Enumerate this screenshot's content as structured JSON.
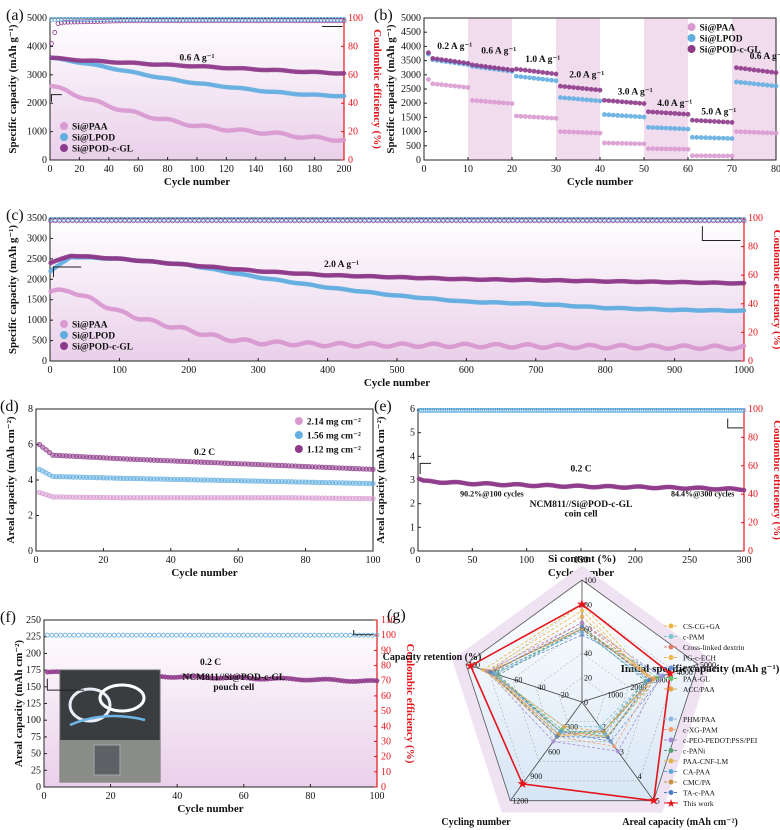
{
  "colors": {
    "paa": "#d99ad1",
    "lpod": "#63aee0",
    "pod": "#8e3a8a",
    "ce": "#e4141b",
    "shade": "#f1dcee",
    "radar_outer": "#efe3f3",
    "radar_inner": "#c4def0"
  },
  "chart_data": [
    {
      "id": "a",
      "panel_label": "(a)",
      "type": "scatter",
      "xlabel": "Cycle number",
      "ylabel": "Specific capacity (mAh g⁻¹)",
      "y2label": "Coulombic efficiency (%)",
      "xlim": [
        0,
        200
      ],
      "ylim": [
        0,
        5000
      ],
      "y2lim": [
        0,
        100
      ],
      "xticks": [
        "0",
        "20",
        "40",
        "60",
        "80",
        "100",
        "120",
        "140",
        "160",
        "180",
        "200"
      ],
      "yticks": [
        "0",
        "1000",
        "2000",
        "3000",
        "4000",
        "5000"
      ],
      "y2ticks": [
        "0",
        "20",
        "40",
        "60",
        "80",
        "100"
      ],
      "annotation": "0.6 A g⁻¹",
      "series": [
        {
          "name": "Si@PAA",
          "color": "#d99ad1",
          "x": [
            1,
            10,
            25,
            50,
            75,
            100,
            125,
            150,
            175,
            200
          ],
          "y": [
            2600,
            2450,
            2150,
            1750,
            1450,
            1200,
            1050,
            950,
            800,
            700
          ]
        },
        {
          "name": "Si@LPOD",
          "color": "#63aee0",
          "x": [
            1,
            10,
            25,
            50,
            75,
            100,
            125,
            150,
            175,
            200
          ],
          "y": [
            3600,
            3520,
            3400,
            3150,
            2900,
            2700,
            2550,
            2400,
            2300,
            2250
          ]
        },
        {
          "name": "Si@POD-c-GL",
          "color": "#8e3a8a",
          "x": [
            1,
            10,
            25,
            50,
            75,
            100,
            125,
            150,
            175,
            200
          ],
          "y": [
            3600,
            3550,
            3500,
            3430,
            3360,
            3300,
            3230,
            3170,
            3100,
            3050
          ]
        }
      ],
      "ce_series": {
        "x": [
          1,
          5,
          10,
          50,
          100,
          150,
          200
        ],
        "y": [
          82,
          96,
          97,
          98,
          98,
          98,
          98
        ]
      }
    },
    {
      "id": "b",
      "panel_label": "(b)",
      "type": "scatter",
      "xlabel": "Cycle number",
      "ylabel": "Specific capacity (mAh g⁻¹)",
      "xlim": [
        0,
        80
      ],
      "ylim": [
        0,
        5000
      ],
      "xticks": [
        "0",
        "10",
        "20",
        "30",
        "40",
        "50",
        "60",
        "70",
        "80"
      ],
      "yticks": [
        "0",
        "500",
        "1000",
        "1500",
        "2000",
        "2500",
        "3000",
        "3500",
        "4000",
        "4500",
        "5000"
      ],
      "rate_labels": [
        "0.2 A g⁻¹",
        "0.6 A g⁻¹",
        "1.0 A g⁻¹",
        "2.0 A g⁻¹",
        "3.0 A g⁻¹",
        "4.0 A g⁻¹",
        "5.0 A g⁻¹",
        "0.6 A g⁻¹"
      ],
      "series": [
        {
          "name": "Si@PAA",
          "color": "#d99ad1",
          "steps": [
            2700,
            2100,
            1550,
            1000,
            600,
            400,
            150,
            1000
          ]
        },
        {
          "name": "Si@LPOD",
          "color": "#63aee0",
          "steps": [
            3550,
            3300,
            2950,
            2200,
            1600,
            1150,
            800,
            2750
          ]
        },
        {
          "name": "Si@POD-c-GL",
          "color": "#8e3a8a",
          "steps": [
            3600,
            3350,
            3200,
            2600,
            2100,
            1700,
            1400,
            3250
          ]
        }
      ]
    },
    {
      "id": "c",
      "panel_label": "(c)",
      "type": "scatter",
      "xlabel": "Cycle number",
      "ylabel": "Specific capacity (mAh g⁻¹)",
      "y2label": "Coulombic efficiency (%)",
      "xlim": [
        0,
        1000
      ],
      "ylim": [
        0,
        3500
      ],
      "y2lim": [
        0,
        100
      ],
      "xticks": [
        "0",
        "100",
        "200",
        "300",
        "400",
        "500",
        "600",
        "700",
        "800",
        "900",
        "1000"
      ],
      "yticks": [
        "0",
        "500",
        "1000",
        "1500",
        "2000",
        "2500",
        "3000",
        "3500"
      ],
      "y2ticks": [
        "0",
        "20",
        "40",
        "60",
        "80",
        "100"
      ],
      "annotation": "2.0 A g⁻¹",
      "series": [
        {
          "name": "Si@PAA",
          "color": "#d99ad1",
          "x": [
            1,
            30,
            60,
            100,
            150,
            200,
            250,
            300,
            400,
            600,
            800,
            1000
          ],
          "y": [
            1700,
            1720,
            1500,
            1200,
            950,
            750,
            550,
            450,
            400,
            380,
            350,
            330
          ]
        },
        {
          "name": "Si@LPOD",
          "color": "#63aee0",
          "x": [
            1,
            30,
            100,
            200,
            300,
            400,
            500,
            600,
            700,
            800,
            900,
            1000
          ],
          "y": [
            2200,
            2550,
            2500,
            2350,
            2050,
            1800,
            1600,
            1450,
            1400,
            1300,
            1250,
            1230
          ]
        },
        {
          "name": "Si@POD-c-GL",
          "color": "#8e3a8a",
          "x": [
            1,
            30,
            100,
            200,
            300,
            400,
            500,
            600,
            700,
            800,
            900,
            1000
          ],
          "y": [
            2400,
            2580,
            2500,
            2350,
            2200,
            2100,
            2050,
            2000,
            1980,
            1950,
            1930,
            1900
          ]
        }
      ],
      "ce_series": {
        "x": [
          1,
          100,
          500,
          1000
        ],
        "y": [
          96,
          98,
          98,
          98
        ]
      }
    },
    {
      "id": "d",
      "panel_label": "(d)",
      "type": "scatter",
      "xlabel": "Cycle number",
      "ylabel": "Areal capacity (mAh cm⁻²)",
      "xlim": [
        0,
        100
      ],
      "ylim": [
        0,
        8
      ],
      "xticks": [
        "0",
        "20",
        "40",
        "60",
        "80",
        "100"
      ],
      "yticks": [
        "0",
        "2",
        "4",
        "6",
        "8"
      ],
      "annotation": "0.2 C",
      "series": [
        {
          "name": "2.14 mg cm⁻²",
          "color": "#d99ad1",
          "x": [
            1,
            5,
            25,
            50,
            75,
            100
          ],
          "y": [
            3.3,
            3.05,
            3.0,
            3.0,
            3.0,
            2.95
          ]
        },
        {
          "name": "1.56 mg cm⁻²",
          "color": "#63aee0",
          "x": [
            1,
            5,
            25,
            50,
            75,
            100
          ],
          "y": [
            4.6,
            4.2,
            4.1,
            4.0,
            3.9,
            3.8
          ]
        },
        {
          "name": "1.12 mg cm⁻²",
          "color": "#8e3a8a",
          "x": [
            1,
            5,
            25,
            50,
            75,
            100
          ],
          "y": [
            6.0,
            5.4,
            5.2,
            5.0,
            4.8,
            4.6
          ]
        }
      ]
    },
    {
      "id": "e",
      "panel_label": "(e)",
      "type": "scatter",
      "xlabel": "Cycle number",
      "ylabel": "Areal capacity (mAh cm⁻²)",
      "y2label": "Coulombic efficiency (%)",
      "xlim": [
        0,
        300
      ],
      "ylim": [
        0,
        6
      ],
      "y2lim": [
        0,
        100
      ],
      "xticks": [
        "0",
        "50",
        "100",
        "150",
        "200",
        "250",
        "300"
      ],
      "yticks": [
        "0",
        "1",
        "2",
        "3",
        "4",
        "5",
        "6"
      ],
      "y2ticks": [
        "0",
        "20",
        "40",
        "60",
        "80",
        "100"
      ],
      "annotation": "0.2 C",
      "notes": [
        "90.2%@100 cycles",
        "84.4%@300 cycles"
      ],
      "cell": [
        "NCM811//Si@POD-c-GL",
        "coin cell"
      ],
      "series": [
        {
          "name": "NCM811//Si@POD-c-GL",
          "color": "#8e3a8a",
          "x": [
            1,
            5,
            50,
            100,
            150,
            200,
            250,
            300
          ],
          "y": [
            3.05,
            2.95,
            2.85,
            2.78,
            2.73,
            2.7,
            2.66,
            2.6
          ]
        }
      ],
      "ce_series": {
        "x": [
          1,
          300
        ],
        "y": [
          99,
          99
        ]
      }
    },
    {
      "id": "f",
      "panel_label": "(f)",
      "type": "scatter",
      "xlabel": "Cycle number",
      "ylabel": "Areal capacity (mAh cm⁻²)",
      "y2label": "Coulombic efficiency (%)",
      "xlim": [
        0,
        100
      ],
      "ylim": [
        0,
        250
      ],
      "y2lim": [
        0,
        110
      ],
      "xticks": [
        "0",
        "20",
        "40",
        "60",
        "80",
        "100"
      ],
      "yticks": [
        "0",
        "25",
        "50",
        "75",
        "100",
        "125",
        "150",
        "175",
        "200",
        "225",
        "250"
      ],
      "y2ticks": [
        "0",
        "10",
        "20",
        "30",
        "40",
        "50",
        "60",
        "70",
        "80",
        "90",
        "100",
        "110"
      ],
      "annotation": "0.2 C",
      "cell": [
        "NCM811//Si@POD-c-GL",
        "pouch cell"
      ],
      "series": [
        {
          "name": "NCM811//Si@POD-c-GL",
          "color": "#8e3a8a",
          "x": [
            1,
            20,
            40,
            60,
            80,
            100
          ],
          "y": [
            172,
            168,
            165,
            163,
            161,
            158
          ]
        }
      ],
      "ce_series": {
        "x": [
          1,
          100
        ],
        "y": [
          100,
          100
        ]
      }
    },
    {
      "id": "g",
      "panel_label": "(g)",
      "type": "radar",
      "axes": [
        {
          "name": "Si content (%)",
          "ticks": [
            "0",
            "20",
            "40",
            "60",
            "80",
            "100"
          ]
        },
        {
          "name": "Initial specific capacity (mAh g⁻¹)",
          "ticks": [
            "0",
            "1000",
            "2000",
            "3000",
            "4000",
            "5000"
          ]
        },
        {
          "name": "Areal capacity (mAh cm⁻²)",
          "ticks": [
            "1",
            "2",
            "3",
            "4",
            "5"
          ]
        },
        {
          "name": "Cycling number",
          "ticks": [
            "0",
            "300",
            "600",
            "900",
            "1200"
          ]
        },
        {
          "name": "Capacity retention (%)",
          "ticks": [
            "0",
            "20",
            "40",
            "60",
            "80",
            "100"
          ]
        }
      ],
      "series": [
        {
          "name": "CS-CG+GA",
          "color": "#e8b341",
          "values": [
            0.8,
            0.6,
            0.3,
            0.3,
            0.85
          ]
        },
        {
          "name": "c-PAM",
          "color": "#7dc4c9",
          "values": [
            0.6,
            0.55,
            0.25,
            0.25,
            0.8
          ]
        },
        {
          "name": "Cross-linked dextrin",
          "color": "#e07b6b",
          "values": [
            0.65,
            0.62,
            0.35,
            0.3,
            0.78
          ]
        },
        {
          "name": "PG-c-ECH",
          "color": "#f0b64c",
          "values": [
            0.75,
            0.58,
            0.3,
            0.35,
            0.82
          ]
        },
        {
          "name": "PAA-FREP",
          "color": "#6b8fd1",
          "values": [
            0.55,
            0.7,
            0.4,
            0.3,
            0.75
          ]
        },
        {
          "name": "PAA-GL",
          "color": "#6abf69",
          "values": [
            0.6,
            0.65,
            0.35,
            0.28,
            0.76
          ]
        },
        {
          "name": "ACC/PAA",
          "color": "#e6a23c",
          "values": [
            0.7,
            0.6,
            0.3,
            0.25,
            0.8
          ]
        },
        {
          "name": "PHM/PAA",
          "color": "#8fb8de",
          "values": [
            0.6,
            0.55,
            0.28,
            0.32,
            0.74
          ]
        },
        {
          "name": "c-XG-PAM",
          "color": "#f29e6b",
          "values": [
            0.6,
            0.62,
            0.45,
            0.35,
            0.8
          ]
        },
        {
          "name": "c-PEO-PEDOT:PSS/PEI",
          "color": "#a78ad6",
          "values": [
            0.65,
            0.68,
            0.5,
            0.4,
            0.82
          ]
        },
        {
          "name": "c-PANi",
          "color": "#5c9e7a",
          "values": [
            0.6,
            0.55,
            0.3,
            0.3,
            0.72
          ]
        },
        {
          "name": "PAA-CNF-LM",
          "color": "#d9b24a",
          "values": [
            0.62,
            0.6,
            0.35,
            0.33,
            0.78
          ]
        },
        {
          "name": "CA-PAA",
          "color": "#5fa7d9",
          "values": [
            0.58,
            0.57,
            0.32,
            0.3,
            0.77
          ]
        },
        {
          "name": "CMC/PA",
          "color": "#c99245",
          "values": [
            0.6,
            0.6,
            0.3,
            0.33,
            0.8
          ]
        },
        {
          "name": "TA-c-PAA",
          "color": "#4c7fc2",
          "values": [
            0.62,
            0.58,
            0.36,
            0.35,
            0.79
          ]
        },
        {
          "name": "This work",
          "color": "#e4141b",
          "values": [
            0.8,
            0.76,
            1.0,
            0.83,
            0.96
          ]
        }
      ]
    }
  ]
}
